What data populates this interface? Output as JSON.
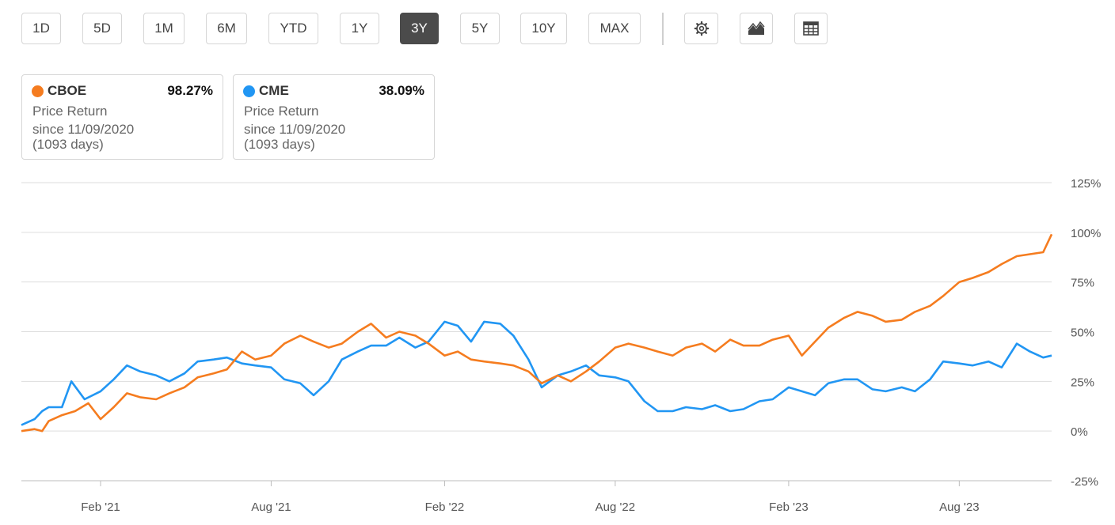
{
  "toolbar": {
    "ranges": [
      "1D",
      "5D",
      "1M",
      "6M",
      "YTD",
      "1Y",
      "3Y",
      "5Y",
      "10Y",
      "MAX"
    ],
    "active_range": "3Y",
    "icons": [
      "gear-icon",
      "area-chart-icon",
      "table-icon"
    ]
  },
  "cards": [
    {
      "symbol": "CBOE",
      "percent": "98.27%",
      "metric": "Price Return",
      "since": "since 11/09/2020",
      "days": "(1093 days)",
      "color": "#f57c1f"
    },
    {
      "symbol": "CME",
      "percent": "38.09%",
      "metric": "Price Return",
      "since": "since 11/09/2020",
      "days": "(1093 days)",
      "color": "#2196f3"
    }
  ],
  "chart_data": {
    "type": "line",
    "y_ticks": [
      "125%",
      "100%",
      "75%",
      "50%",
      "25%",
      "0%",
      "-25%"
    ],
    "ylim": [
      -25,
      125
    ],
    "x_ticks": [
      "Feb '21",
      "Aug '21",
      "Feb '22",
      "Aug '22",
      "Feb '23",
      "Aug '23"
    ],
    "x_tick_dates": [
      "2021-02-01",
      "2021-08-01",
      "2022-02-01",
      "2022-08-01",
      "2023-02-01",
      "2023-08-01"
    ],
    "xlim": [
      "2020-11-09",
      "2023-11-07"
    ],
    "grid": true,
    "series": [
      {
        "name": "CBOE",
        "color": "#f57c1f",
        "points": [
          [
            "2020-11-09",
            0
          ],
          [
            "2020-11-23",
            1
          ],
          [
            "2020-12-01",
            0
          ],
          [
            "2020-12-08",
            5
          ],
          [
            "2020-12-22",
            8
          ],
          [
            "2021-01-05",
            10
          ],
          [
            "2021-01-19",
            14
          ],
          [
            "2021-02-01",
            6
          ],
          [
            "2021-02-15",
            12
          ],
          [
            "2021-03-01",
            19
          ],
          [
            "2021-03-15",
            17
          ],
          [
            "2021-04-01",
            16
          ],
          [
            "2021-04-15",
            19
          ],
          [
            "2021-05-01",
            22
          ],
          [
            "2021-05-15",
            27
          ],
          [
            "2021-06-01",
            29
          ],
          [
            "2021-06-15",
            31
          ],
          [
            "2021-07-01",
            40
          ],
          [
            "2021-07-15",
            36
          ],
          [
            "2021-08-01",
            38
          ],
          [
            "2021-08-15",
            44
          ],
          [
            "2021-09-01",
            48
          ],
          [
            "2021-09-15",
            45
          ],
          [
            "2021-10-01",
            42
          ],
          [
            "2021-10-15",
            44
          ],
          [
            "2021-11-01",
            50
          ],
          [
            "2021-11-15",
            54
          ],
          [
            "2021-12-01",
            47
          ],
          [
            "2021-12-15",
            50
          ],
          [
            "2022-01-01",
            48
          ],
          [
            "2022-01-15",
            44
          ],
          [
            "2022-02-01",
            38
          ],
          [
            "2022-02-15",
            40
          ],
          [
            "2022-03-01",
            36
          ],
          [
            "2022-03-15",
            35
          ],
          [
            "2022-04-01",
            34
          ],
          [
            "2022-04-15",
            33
          ],
          [
            "2022-05-01",
            30
          ],
          [
            "2022-05-15",
            24
          ],
          [
            "2022-06-01",
            28
          ],
          [
            "2022-06-15",
            25
          ],
          [
            "2022-07-01",
            30
          ],
          [
            "2022-07-15",
            35
          ],
          [
            "2022-08-01",
            42
          ],
          [
            "2022-08-15",
            44
          ],
          [
            "2022-09-01",
            42
          ],
          [
            "2022-09-15",
            40
          ],
          [
            "2022-10-01",
            38
          ],
          [
            "2022-10-15",
            42
          ],
          [
            "2022-11-01",
            44
          ],
          [
            "2022-11-15",
            40
          ],
          [
            "2022-12-01",
            46
          ],
          [
            "2022-12-15",
            43
          ],
          [
            "2023-01-01",
            43
          ],
          [
            "2023-01-15",
            46
          ],
          [
            "2023-02-01",
            48
          ],
          [
            "2023-02-15",
            38
          ],
          [
            "2023-03-01",
            45
          ],
          [
            "2023-03-15",
            52
          ],
          [
            "2023-04-01",
            57
          ],
          [
            "2023-04-15",
            60
          ],
          [
            "2023-05-01",
            58
          ],
          [
            "2023-05-15",
            55
          ],
          [
            "2023-06-01",
            56
          ],
          [
            "2023-06-15",
            60
          ],
          [
            "2023-07-01",
            63
          ],
          [
            "2023-07-15",
            68
          ],
          [
            "2023-08-01",
            75
          ],
          [
            "2023-08-15",
            77
          ],
          [
            "2023-09-01",
            80
          ],
          [
            "2023-09-15",
            84
          ],
          [
            "2023-10-01",
            88
          ],
          [
            "2023-10-15",
            89
          ],
          [
            "2023-10-29",
            90
          ],
          [
            "2023-11-07",
            99
          ]
        ]
      },
      {
        "name": "CME",
        "color": "#2196f3",
        "points": [
          [
            "2020-11-09",
            3
          ],
          [
            "2020-11-23",
            6
          ],
          [
            "2020-12-01",
            10
          ],
          [
            "2020-12-08",
            12
          ],
          [
            "2020-12-22",
            12
          ],
          [
            "2021-01-01",
            25
          ],
          [
            "2021-01-15",
            16
          ],
          [
            "2021-02-01",
            20
          ],
          [
            "2021-02-15",
            26
          ],
          [
            "2021-03-01",
            33
          ],
          [
            "2021-03-15",
            30
          ],
          [
            "2021-04-01",
            28
          ],
          [
            "2021-04-15",
            25
          ],
          [
            "2021-05-01",
            29
          ],
          [
            "2021-05-15",
            35
          ],
          [
            "2021-06-01",
            36
          ],
          [
            "2021-06-15",
            37
          ],
          [
            "2021-07-01",
            34
          ],
          [
            "2021-07-15",
            33
          ],
          [
            "2021-08-01",
            32
          ],
          [
            "2021-08-15",
            26
          ],
          [
            "2021-09-01",
            24
          ],
          [
            "2021-09-15",
            18
          ],
          [
            "2021-10-01",
            25
          ],
          [
            "2021-10-15",
            36
          ],
          [
            "2021-11-01",
            40
          ],
          [
            "2021-11-15",
            43
          ],
          [
            "2021-12-01",
            43
          ],
          [
            "2021-12-15",
            47
          ],
          [
            "2022-01-01",
            42
          ],
          [
            "2022-01-15",
            45
          ],
          [
            "2022-02-01",
            55
          ],
          [
            "2022-02-15",
            53
          ],
          [
            "2022-03-01",
            45
          ],
          [
            "2022-03-15",
            55
          ],
          [
            "2022-04-01",
            54
          ],
          [
            "2022-04-15",
            48
          ],
          [
            "2022-05-01",
            36
          ],
          [
            "2022-05-15",
            22
          ],
          [
            "2022-06-01",
            28
          ],
          [
            "2022-06-15",
            30
          ],
          [
            "2022-07-01",
            33
          ],
          [
            "2022-07-15",
            28
          ],
          [
            "2022-08-01",
            27
          ],
          [
            "2022-08-15",
            25
          ],
          [
            "2022-09-01",
            15
          ],
          [
            "2022-09-15",
            10
          ],
          [
            "2022-10-01",
            10
          ],
          [
            "2022-10-15",
            12
          ],
          [
            "2022-11-01",
            11
          ],
          [
            "2022-11-15",
            13
          ],
          [
            "2022-12-01",
            10
          ],
          [
            "2022-12-15",
            11
          ],
          [
            "2023-01-01",
            15
          ],
          [
            "2023-01-15",
            16
          ],
          [
            "2023-02-01",
            22
          ],
          [
            "2023-02-15",
            20
          ],
          [
            "2023-03-01",
            18
          ],
          [
            "2023-03-15",
            24
          ],
          [
            "2023-04-01",
            26
          ],
          [
            "2023-04-15",
            26
          ],
          [
            "2023-05-01",
            21
          ],
          [
            "2023-05-15",
            20
          ],
          [
            "2023-06-01",
            22
          ],
          [
            "2023-06-15",
            20
          ],
          [
            "2023-07-01",
            26
          ],
          [
            "2023-07-15",
            35
          ],
          [
            "2023-08-01",
            34
          ],
          [
            "2023-08-15",
            33
          ],
          [
            "2023-09-01",
            35
          ],
          [
            "2023-09-15",
            32
          ],
          [
            "2023-10-01",
            44
          ],
          [
            "2023-10-15",
            40
          ],
          [
            "2023-10-29",
            37
          ],
          [
            "2023-11-07",
            38
          ]
        ]
      }
    ]
  }
}
